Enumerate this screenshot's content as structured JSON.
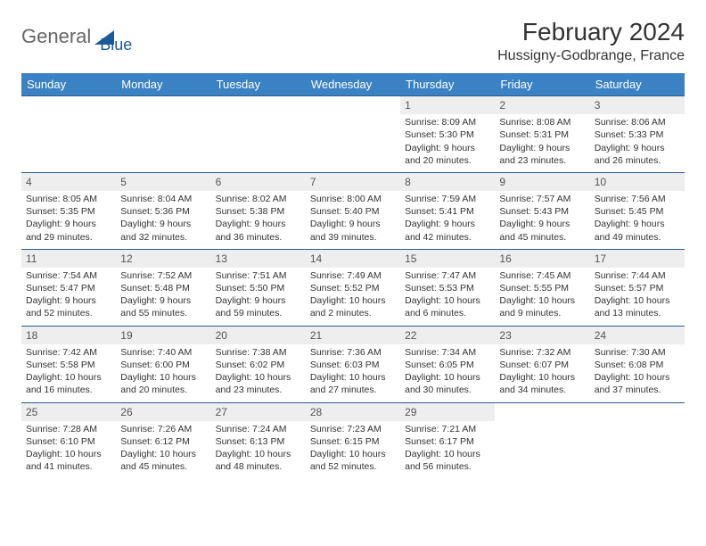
{
  "brand": {
    "part1": "General",
    "part2": "Blue"
  },
  "title": "February 2024",
  "location": "Hussigny-Godbrange, France",
  "colors": {
    "header_bg": "#3b82c4",
    "header_text": "#ffffff",
    "row_border": "#2a5b8a",
    "daynum_bg": "#eeeeee",
    "logo_accent": "#1a5a99"
  },
  "day_headers": [
    "Sunday",
    "Monday",
    "Tuesday",
    "Wednesday",
    "Thursday",
    "Friday",
    "Saturday"
  ],
  "weeks": [
    [
      null,
      null,
      null,
      null,
      {
        "n": "1",
        "sr": "8:09 AM",
        "ss": "5:30 PM",
        "dl": "9 hours and 20 minutes."
      },
      {
        "n": "2",
        "sr": "8:08 AM",
        "ss": "5:31 PM",
        "dl": "9 hours and 23 minutes."
      },
      {
        "n": "3",
        "sr": "8:06 AM",
        "ss": "5:33 PM",
        "dl": "9 hours and 26 minutes."
      }
    ],
    [
      {
        "n": "4",
        "sr": "8:05 AM",
        "ss": "5:35 PM",
        "dl": "9 hours and 29 minutes."
      },
      {
        "n": "5",
        "sr": "8:04 AM",
        "ss": "5:36 PM",
        "dl": "9 hours and 32 minutes."
      },
      {
        "n": "6",
        "sr": "8:02 AM",
        "ss": "5:38 PM",
        "dl": "9 hours and 36 minutes."
      },
      {
        "n": "7",
        "sr": "8:00 AM",
        "ss": "5:40 PM",
        "dl": "9 hours and 39 minutes."
      },
      {
        "n": "8",
        "sr": "7:59 AM",
        "ss": "5:41 PM",
        "dl": "9 hours and 42 minutes."
      },
      {
        "n": "9",
        "sr": "7:57 AM",
        "ss": "5:43 PM",
        "dl": "9 hours and 45 minutes."
      },
      {
        "n": "10",
        "sr": "7:56 AM",
        "ss": "5:45 PM",
        "dl": "9 hours and 49 minutes."
      }
    ],
    [
      {
        "n": "11",
        "sr": "7:54 AM",
        "ss": "5:47 PM",
        "dl": "9 hours and 52 minutes."
      },
      {
        "n": "12",
        "sr": "7:52 AM",
        "ss": "5:48 PM",
        "dl": "9 hours and 55 minutes."
      },
      {
        "n": "13",
        "sr": "7:51 AM",
        "ss": "5:50 PM",
        "dl": "9 hours and 59 minutes."
      },
      {
        "n": "14",
        "sr": "7:49 AM",
        "ss": "5:52 PM",
        "dl": "10 hours and 2 minutes."
      },
      {
        "n": "15",
        "sr": "7:47 AM",
        "ss": "5:53 PM",
        "dl": "10 hours and 6 minutes."
      },
      {
        "n": "16",
        "sr": "7:45 AM",
        "ss": "5:55 PM",
        "dl": "10 hours and 9 minutes."
      },
      {
        "n": "17",
        "sr": "7:44 AM",
        "ss": "5:57 PM",
        "dl": "10 hours and 13 minutes."
      }
    ],
    [
      {
        "n": "18",
        "sr": "7:42 AM",
        "ss": "5:58 PM",
        "dl": "10 hours and 16 minutes."
      },
      {
        "n": "19",
        "sr": "7:40 AM",
        "ss": "6:00 PM",
        "dl": "10 hours and 20 minutes."
      },
      {
        "n": "20",
        "sr": "7:38 AM",
        "ss": "6:02 PM",
        "dl": "10 hours and 23 minutes."
      },
      {
        "n": "21",
        "sr": "7:36 AM",
        "ss": "6:03 PM",
        "dl": "10 hours and 27 minutes."
      },
      {
        "n": "22",
        "sr": "7:34 AM",
        "ss": "6:05 PM",
        "dl": "10 hours and 30 minutes."
      },
      {
        "n": "23",
        "sr": "7:32 AM",
        "ss": "6:07 PM",
        "dl": "10 hours and 34 minutes."
      },
      {
        "n": "24",
        "sr": "7:30 AM",
        "ss": "6:08 PM",
        "dl": "10 hours and 37 minutes."
      }
    ],
    [
      {
        "n": "25",
        "sr": "7:28 AM",
        "ss": "6:10 PM",
        "dl": "10 hours and 41 minutes."
      },
      {
        "n": "26",
        "sr": "7:26 AM",
        "ss": "6:12 PM",
        "dl": "10 hours and 45 minutes."
      },
      {
        "n": "27",
        "sr": "7:24 AM",
        "ss": "6:13 PM",
        "dl": "10 hours and 48 minutes."
      },
      {
        "n": "28",
        "sr": "7:23 AM",
        "ss": "6:15 PM",
        "dl": "10 hours and 52 minutes."
      },
      {
        "n": "29",
        "sr": "7:21 AM",
        "ss": "6:17 PM",
        "dl": "10 hours and 56 minutes."
      },
      null,
      null
    ]
  ],
  "labels": {
    "sunrise": "Sunrise:",
    "sunset": "Sunset:",
    "daylight": "Daylight:"
  }
}
